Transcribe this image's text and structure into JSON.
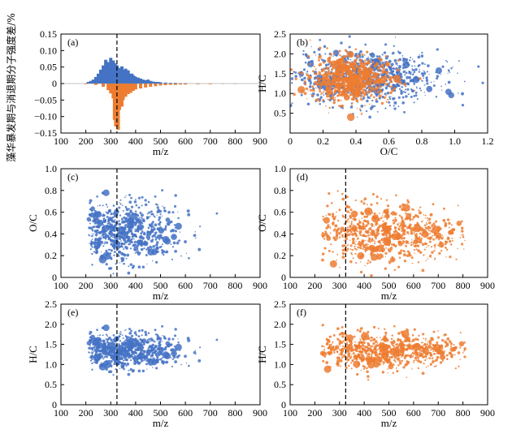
{
  "colors": {
    "blue": "#4472c4",
    "orange": "#ed7d31",
    "axis": "#000000"
  },
  "y_axis_label_left": "藻华暴发期与消退期分子强度差/%",
  "chart_data": [
    {
      "id": "a",
      "panel_label": "(a)",
      "type": "bar",
      "xlabel": "m/z",
      "ylabel": "",
      "xlim": [
        100,
        900
      ],
      "ylim": [
        -0.15,
        0.15
      ],
      "xticks": [
        100,
        200,
        300,
        400,
        500,
        600,
        700,
        800,
        900
      ],
      "yticks": [
        -0.15,
        -0.1,
        -0.05,
        0,
        0.05,
        0.1,
        0.15
      ],
      "ytick_labels": [
        "−0.15",
        "−0.10",
        "−0.05",
        "0",
        "0.05",
        "0.10",
        "0.15"
      ],
      "dashed_x": 325,
      "series": [
        {
          "color": "blue",
          "x": [
            210,
            220,
            230,
            240,
            250,
            260,
            270,
            280,
            290,
            300,
            305,
            310,
            315,
            320,
            325,
            330,
            335,
            340,
            345,
            350,
            355,
            360,
            365,
            370,
            375,
            380,
            385,
            390,
            395,
            400,
            410,
            420,
            430,
            440,
            450,
            460,
            470,
            480,
            490,
            500,
            520,
            540,
            560,
            580,
            600
          ],
          "values": [
            0.005,
            0.008,
            0.012,
            0.02,
            0.03,
            0.042,
            0.055,
            0.072,
            0.065,
            0.078,
            0.06,
            0.07,
            0.062,
            0.058,
            0.055,
            0.048,
            0.046,
            0.04,
            0.052,
            0.042,
            0.038,
            0.045,
            0.035,
            0.04,
            0.03,
            0.026,
            0.03,
            0.025,
            0.022,
            0.02,
            0.018,
            0.015,
            0.012,
            0.01,
            0.012,
            0.008,
            0.006,
            0.005,
            0.005,
            0.004,
            0.003,
            0.002,
            0.002,
            0.001,
            0.001
          ]
        },
        {
          "color": "orange",
          "x": [
            200,
            240,
            270,
            290,
            300,
            310,
            315,
            320,
            325,
            330,
            335,
            340,
            345,
            350,
            360,
            370,
            380,
            390,
            400,
            420,
            440,
            460,
            480,
            500,
            520,
            540,
            560,
            580,
            600,
            650,
            700,
            750,
            800
          ],
          "values": [
            -0.002,
            -0.004,
            -0.01,
            -0.02,
            -0.03,
            -0.045,
            -0.11,
            -0.13,
            -0.095,
            -0.14,
            -0.08,
            -0.062,
            -0.07,
            -0.05,
            -0.04,
            -0.032,
            -0.028,
            -0.022,
            -0.018,
            -0.015,
            -0.012,
            -0.01,
            -0.008,
            -0.006,
            -0.005,
            -0.004,
            -0.004,
            -0.003,
            -0.003,
            -0.002,
            -0.002,
            -0.001,
            -0.001
          ]
        }
      ]
    },
    {
      "id": "b",
      "panel_label": "(b)",
      "type": "scatter",
      "xlabel": "O/C",
      "ylabel": "H/C",
      "xlim": [
        0,
        1.2
      ],
      "ylim": [
        0,
        2.5
      ],
      "xticks": [
        0,
        0.2,
        0.4,
        0.6,
        0.8,
        1.0,
        1.2
      ],
      "xtick_labels": [
        "0",
        "0.2",
        "0.4",
        "0.6",
        "0.8",
        "1.0",
        "1.2"
      ],
      "yticks": [
        0.5,
        1.0,
        1.5,
        2.0,
        2.5
      ],
      "ytick_labels": [
        "0.5",
        "1.0",
        "1.5",
        "2.0",
        "2.5"
      ],
      "series": [
        {
          "color": "blue",
          "center": [
            0.45,
            1.4
          ],
          "spread": [
            0.22,
            0.35
          ]
        },
        {
          "color": "orange",
          "center": [
            0.36,
            1.35
          ],
          "spread": [
            0.12,
            0.28
          ]
        }
      ]
    },
    {
      "id": "c",
      "panel_label": "(c)",
      "type": "scatter",
      "xlabel": "m/z",
      "ylabel": "O/C",
      "xlim": [
        100,
        900
      ],
      "ylim": [
        0,
        1.0
      ],
      "xticks": [
        100,
        200,
        300,
        400,
        500,
        600,
        700,
        800,
        900
      ],
      "yticks": [
        0,
        0.2,
        0.4,
        0.6,
        0.8,
        1.0
      ],
      "ytick_labels": [
        "0",
        "0.2",
        "0.4",
        "0.6",
        "0.8",
        "1.0"
      ],
      "dashed_x": 325,
      "series": [
        {
          "color": "blue",
          "xrange": [
            210,
            780
          ],
          "center": [
            330,
            0.42
          ],
          "spread": [
            120,
            0.14
          ]
        }
      ]
    },
    {
      "id": "d",
      "panel_label": "(d)",
      "type": "scatter",
      "xlabel": "m/z",
      "ylabel": "O/C",
      "xlim": [
        100,
        900
      ],
      "ylim": [
        0,
        1.0
      ],
      "xticks": [
        100,
        200,
        300,
        400,
        500,
        600,
        700,
        800,
        900
      ],
      "yticks": [
        0,
        0.2,
        0.4,
        0.6,
        0.8,
        1.0
      ],
      "ytick_labels": [
        "0",
        "0.2",
        "0.4",
        "0.6",
        "0.8",
        "1.0"
      ],
      "dashed_x": 325,
      "series": [
        {
          "color": "orange",
          "xrange": [
            230,
            810
          ],
          "center": [
            480,
            0.4
          ],
          "spread": [
            150,
            0.13
          ]
        }
      ]
    },
    {
      "id": "e",
      "panel_label": "(e)",
      "type": "scatter",
      "xlabel": "m/z",
      "ylabel": "H/C",
      "xlim": [
        100,
        900
      ],
      "ylim": [
        0,
        2.5
      ],
      "xticks": [
        100,
        200,
        300,
        400,
        500,
        600,
        700,
        800,
        900
      ],
      "yticks": [
        0,
        0.5,
        1.0,
        1.5,
        2.0,
        2.5
      ],
      "ytick_labels": [
        "0",
        "0.5",
        "1.0",
        "1.5",
        "2.0",
        "2.5"
      ],
      "dashed_x": 325,
      "series": [
        {
          "color": "blue",
          "xrange": [
            210,
            770
          ],
          "center": [
            330,
            1.35
          ],
          "spread": [
            120,
            0.22
          ]
        }
      ]
    },
    {
      "id": "f",
      "panel_label": "(f)",
      "type": "scatter",
      "xlabel": "m/z",
      "ylabel": "H/C",
      "xlim": [
        100,
        900
      ],
      "ylim": [
        0,
        2.5
      ],
      "xticks": [
        100,
        200,
        300,
        400,
        500,
        600,
        700,
        800,
        900
      ],
      "yticks": [
        0,
        0.5,
        1.0,
        1.5,
        2.0,
        2.5
      ],
      "ytick_labels": [
        "0",
        "0.5",
        "1.0",
        "1.5",
        "2.0",
        "2.5"
      ],
      "dashed_x": 325,
      "series": [
        {
          "color": "orange",
          "xrange": [
            230,
            810
          ],
          "center": [
            470,
            1.35
          ],
          "spread": [
            160,
            0.22
          ]
        }
      ]
    }
  ]
}
